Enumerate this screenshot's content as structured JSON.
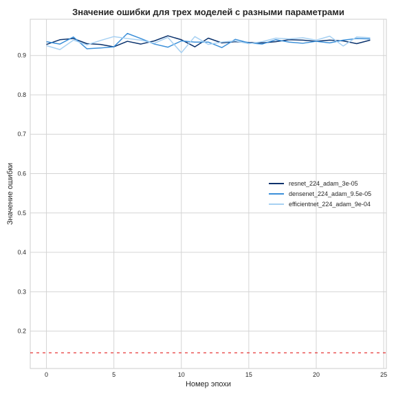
{
  "chart_data": {
    "type": "line",
    "title": "Значение ошибки для трех моделей с разными параметрами",
    "xlabel": "Номер эпохи",
    "ylabel": "Значение ошибки",
    "xlim": [
      -1.2,
      25.2
    ],
    "ylim": [
      0.105,
      0.992
    ],
    "xticks": [
      0,
      5,
      10,
      15,
      20,
      25
    ],
    "yticks": [
      0.2,
      0.3,
      0.4,
      0.5,
      0.6,
      0.7,
      0.8,
      0.9
    ],
    "grid": true,
    "legend_position": "center-right",
    "reference_line": {
      "y": 0.145,
      "color": "#e00000",
      "style": "dashed"
    },
    "series": [
      {
        "name": "resnet_224_adam_3e-05",
        "color": "#08306b",
        "x": [
          0,
          1,
          2,
          3,
          4,
          5,
          6,
          7,
          8,
          9,
          10,
          11,
          12,
          13,
          14,
          15,
          16,
          17,
          18,
          19,
          20,
          21,
          22,
          23,
          24
        ],
        "values": [
          0.928,
          0.94,
          0.943,
          0.93,
          0.928,
          0.922,
          0.936,
          0.929,
          0.937,
          0.95,
          0.94,
          0.922,
          0.944,
          0.932,
          0.935,
          0.933,
          0.932,
          0.935,
          0.94,
          0.939,
          0.936,
          0.939,
          0.937,
          0.93,
          0.939
        ]
      },
      {
        "name": "densenet_224_adam_9.5e-05",
        "color": "#3a8fd9",
        "x": [
          0,
          1,
          2,
          3,
          4,
          5,
          6,
          7,
          8,
          9,
          10,
          11,
          12,
          13,
          14,
          15,
          16,
          17,
          18,
          19,
          20,
          21,
          22,
          23,
          24
        ],
        "values": [
          0.935,
          0.929,
          0.947,
          0.917,
          0.919,
          0.922,
          0.956,
          0.943,
          0.929,
          0.921,
          0.937,
          0.934,
          0.934,
          0.92,
          0.941,
          0.932,
          0.929,
          0.94,
          0.934,
          0.931,
          0.936,
          0.932,
          0.939,
          0.943,
          0.942
        ]
      },
      {
        "name": "efficientnet_224_adam_9e-04",
        "color": "#a6d0f2",
        "x": [
          0,
          1,
          2,
          3,
          4,
          5,
          6,
          7,
          8,
          9,
          10,
          11,
          12,
          13,
          14,
          15,
          16,
          17,
          18,
          19,
          20,
          21,
          22,
          23,
          24
        ],
        "values": [
          0.925,
          0.915,
          0.939,
          0.927,
          0.938,
          0.948,
          0.943,
          0.939,
          0.931,
          0.946,
          0.907,
          0.948,
          0.928,
          0.934,
          0.937,
          0.93,
          0.935,
          0.944,
          0.942,
          0.945,
          0.939,
          0.949,
          0.924,
          0.947,
          0.945
        ]
      }
    ]
  }
}
